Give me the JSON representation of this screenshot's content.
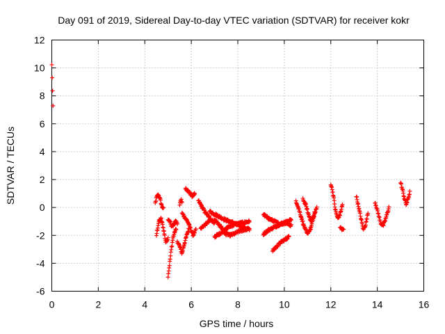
{
  "chart_data": {
    "type": "scatter",
    "title": "Day 091 of 2019, Sidereal Day-to-day VTEC variation (SDTVAR) for receiver kokr",
    "xlabel": "GPS time / hours",
    "ylabel": "SDTVAR / TECUs",
    "xlim": [
      0,
      16
    ],
    "ylim": [
      -6,
      12
    ],
    "xticks": [
      "0",
      "2",
      "4",
      "6",
      "8",
      "10",
      "12",
      "14",
      "16"
    ],
    "yticks": [
      "-6",
      "-4",
      "-2",
      "0",
      "2",
      "4",
      "6",
      "8",
      "10",
      "12"
    ],
    "grid": true,
    "marker": "+",
    "color": "#ff0000",
    "segments": [
      {
        "x0": 0.0,
        "x1": 0.05,
        "y": [
          10.2,
          10.6,
          8.7,
          8.7,
          7.6,
          7.2
        ]
      },
      {
        "x0": 4.45,
        "x1": 4.8,
        "y": [
          0.3,
          0.8,
          0.9,
          0.6,
          0.1,
          -0.1
        ]
      },
      {
        "x0": 4.5,
        "x1": 5.0,
        "y": [
          -2.0,
          -1.0,
          -0.8,
          -1.5,
          -2.5,
          -2.2
        ]
      },
      {
        "x0": 5.0,
        "x1": 5.35,
        "y": [
          -4.9,
          -4.0,
          -3.0,
          -2.2,
          -1.8,
          -1.5
        ]
      },
      {
        "x0": 5.0,
        "x1": 5.4,
        "y": [
          -0.9,
          -1.0,
          -1.4,
          -1.2,
          -1.0,
          -1.1
        ]
      },
      {
        "x0": 5.5,
        "x1": 5.6,
        "y": [
          0.2,
          0.4,
          0.5,
          0.3
        ]
      },
      {
        "x0": 5.4,
        "x1": 5.9,
        "y": [
          -2.4,
          -2.8,
          -3.3,
          -2.6,
          -2.0,
          -1.5
        ]
      },
      {
        "x0": 5.75,
        "x1": 6.15,
        "y": [
          1.4,
          1.2,
          1.0,
          0.8,
          1.0
        ]
      },
      {
        "x0": 5.6,
        "x1": 6.2,
        "y": [
          -0.4,
          -0.7,
          -1.0,
          -1.5,
          -2.0,
          -1.6
        ]
      },
      {
        "x0": 6.3,
        "x1": 7.0,
        "y": [
          0.5,
          0.1,
          -0.3,
          -0.6,
          -0.9,
          -1.1
        ]
      },
      {
        "x0": 6.4,
        "x1": 7.5,
        "y": [
          -1.5,
          -1.2,
          -0.9,
          -1.0,
          -1.4,
          -1.9
        ]
      },
      {
        "x0": 6.8,
        "x1": 8.5,
        "y": [
          -0.3,
          -0.6,
          -0.9,
          -1.1,
          -1.4,
          -1.6
        ]
      },
      {
        "x0": 7.0,
        "x1": 8.5,
        "y": [
          -2.1,
          -1.8,
          -1.4,
          -1.2,
          -1.1,
          -1.0
        ]
      },
      {
        "x0": 7.4,
        "x1": 8.5,
        "y": [
          -1.7,
          -2.0,
          -1.9,
          -1.7,
          -1.6,
          -1.5
        ]
      },
      {
        "x0": 9.1,
        "x1": 10.3,
        "y": [
          -0.5,
          -0.8,
          -1.0,
          -1.2,
          -1.0,
          -0.9
        ]
      },
      {
        "x0": 9.1,
        "x1": 10.3,
        "y": [
          -1.9,
          -1.6,
          -1.4,
          -1.2,
          -1.1,
          -1.3
        ]
      },
      {
        "x0": 9.5,
        "x1": 10.2,
        "y": [
          -3.1,
          -2.8,
          -2.5,
          -2.3,
          -2.1
        ]
      },
      {
        "x0": 10.5,
        "x1": 11.3,
        "y": [
          0.5,
          -0.3,
          -1.2,
          -1.9,
          -1.5,
          -0.4
        ]
      },
      {
        "x0": 10.8,
        "x1": 11.4,
        "y": [
          0.6,
          0.2,
          -0.5,
          -1.0,
          -0.6,
          0.0
        ]
      },
      {
        "x0": 12.0,
        "x1": 12.5,
        "y": [
          1.7,
          1.0,
          -0.2,
          -0.8,
          -0.5,
          0.2
        ]
      },
      {
        "x0": 12.4,
        "x1": 12.55,
        "y": [
          -1.4,
          -1.6,
          -1.5
        ]
      },
      {
        "x0": 13.1,
        "x1": 13.6,
        "y": [
          0.8,
          0.0,
          -0.8,
          -1.6,
          -1.2,
          -0.4
        ]
      },
      {
        "x0": 13.9,
        "x1": 14.5,
        "y": [
          0.4,
          -0.3,
          -1.1,
          -1.3,
          -0.7,
          0.0
        ]
      },
      {
        "x0": 15.0,
        "x1": 15.4,
        "y": [
          1.8,
          1.3,
          0.7,
          0.2,
          0.6,
          1.1
        ]
      }
    ]
  }
}
